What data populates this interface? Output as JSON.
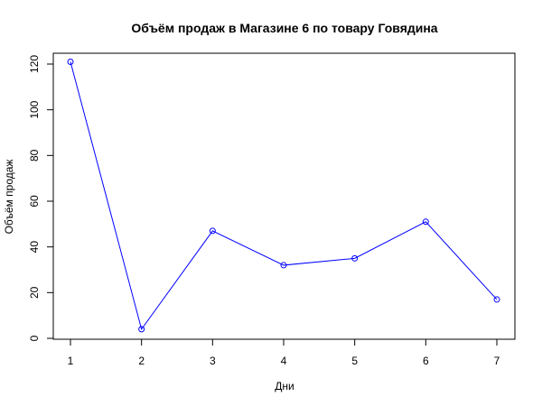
{
  "chart_data": {
    "type": "line",
    "title": "Объём продаж в Магазине 6 по товару Говядина",
    "xlabel": "Дни",
    "ylabel": "Объём продаж",
    "x": [
      1,
      2,
      3,
      4,
      5,
      6,
      7
    ],
    "series": [
      {
        "values": [
          121,
          4,
          47,
          32,
          35,
          51,
          17
        ]
      }
    ],
    "xlim": [
      1,
      7
    ],
    "ylim": [
      0,
      120
    ],
    "xticks": [
      "1",
      "2",
      "3",
      "4",
      "5",
      "6",
      "7"
    ],
    "yticks": [
      "0",
      "20",
      "40",
      "60",
      "80",
      "100",
      "120"
    ],
    "grid": false,
    "line_color": "#0000ff",
    "marker": "open-circle"
  }
}
